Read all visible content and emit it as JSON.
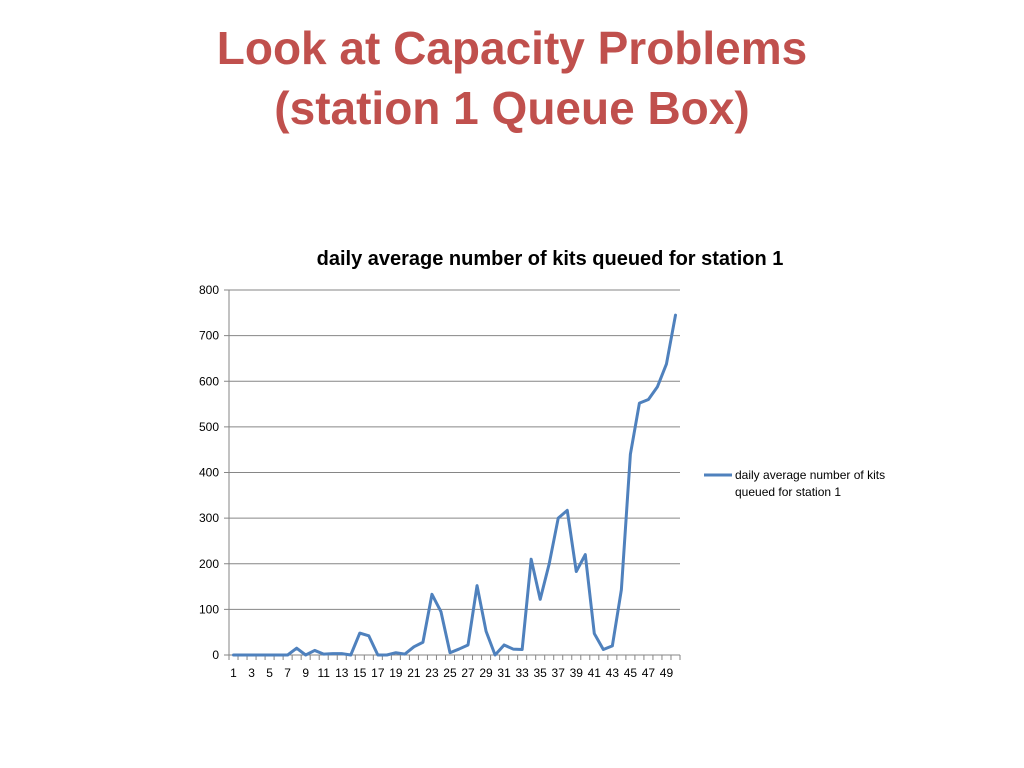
{
  "slide": {
    "title_line1": "Look at Capacity Problems",
    "title_line2": "(station 1 Queue Box)"
  },
  "colors": {
    "title": "#c0504d",
    "series": "#4f81bd",
    "gridline": "#868686",
    "axis": "#868686"
  },
  "chart_data": {
    "type": "line",
    "title": "daily average number of kits queued for station 1",
    "xlabel": "",
    "ylabel": "",
    "x": [
      1,
      2,
      3,
      4,
      5,
      6,
      7,
      8,
      9,
      10,
      11,
      12,
      13,
      14,
      15,
      16,
      17,
      18,
      19,
      20,
      21,
      22,
      23,
      24,
      25,
      26,
      27,
      28,
      29,
      30,
      31,
      32,
      33,
      34,
      35,
      36,
      37,
      38,
      39,
      40,
      41,
      42,
      43,
      44,
      45,
      46,
      47,
      48,
      49,
      50
    ],
    "x_tick_labels": [
      "1",
      "3",
      "5",
      "7",
      "9",
      "11",
      "13",
      "15",
      "17",
      "19",
      "21",
      "23",
      "25",
      "27",
      "29",
      "31",
      "33",
      "35",
      "37",
      "39",
      "41",
      "43",
      "45",
      "47",
      "49"
    ],
    "ylim": [
      0,
      800
    ],
    "y_ticks": [
      0,
      100,
      200,
      300,
      400,
      500,
      600,
      700,
      800
    ],
    "grid": true,
    "legend_position": "right",
    "series": [
      {
        "name": "daily average number of kits queued for station 1",
        "values": [
          0,
          0,
          0,
          0,
          0,
          0,
          0,
          15,
          0,
          10,
          2,
          3,
          3,
          0,
          48,
          42,
          0,
          0,
          5,
          2,
          18,
          28,
          133,
          95,
          5,
          13,
          22,
          152,
          52,
          0,
          22,
          13,
          12,
          210,
          122,
          200,
          300,
          317,
          183,
          220,
          47,
          12,
          20,
          143,
          440,
          552,
          560,
          588,
          638,
          745
        ]
      }
    ]
  }
}
